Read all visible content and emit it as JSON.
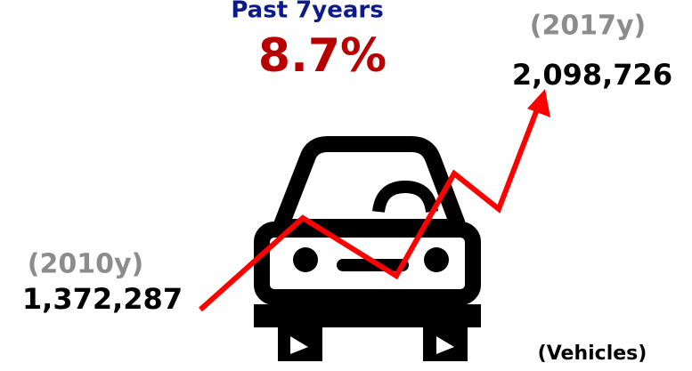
{
  "header": {
    "title": "Past 7years",
    "rate": "8.7%"
  },
  "start": {
    "year": "(2010y)",
    "value": "1,372,287"
  },
  "end": {
    "year": "(2017y)",
    "value": "2,098,726"
  },
  "unit": "(Vehicles)"
}
